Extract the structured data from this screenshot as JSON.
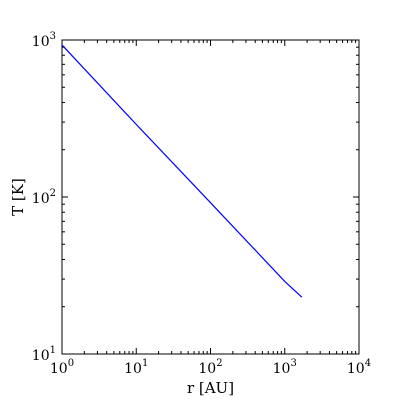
{
  "chart_data": {
    "type": "line",
    "title": "",
    "xlabel": "r [AU]",
    "ylabel": "T [K]",
    "xscale": "log",
    "yscale": "log",
    "xlim": [
      1,
      10000
    ],
    "ylim": [
      10,
      1000
    ],
    "grid": false,
    "x_ticks": [
      {
        "base": "10",
        "exp": "0"
      },
      {
        "base": "10",
        "exp": "1"
      },
      {
        "base": "10",
        "exp": "2"
      },
      {
        "base": "10",
        "exp": "3"
      },
      {
        "base": "10",
        "exp": "4"
      }
    ],
    "y_ticks": [
      {
        "base": "10",
        "exp": "1"
      },
      {
        "base": "10",
        "exp": "2"
      },
      {
        "base": "10",
        "exp": "3"
      }
    ],
    "series": [
      {
        "color": "#0000ff",
        "x": [
          1,
          10,
          100,
          1000,
          1700
        ],
        "y": [
          930,
          290,
          92,
          29,
          23
        ]
      }
    ]
  }
}
